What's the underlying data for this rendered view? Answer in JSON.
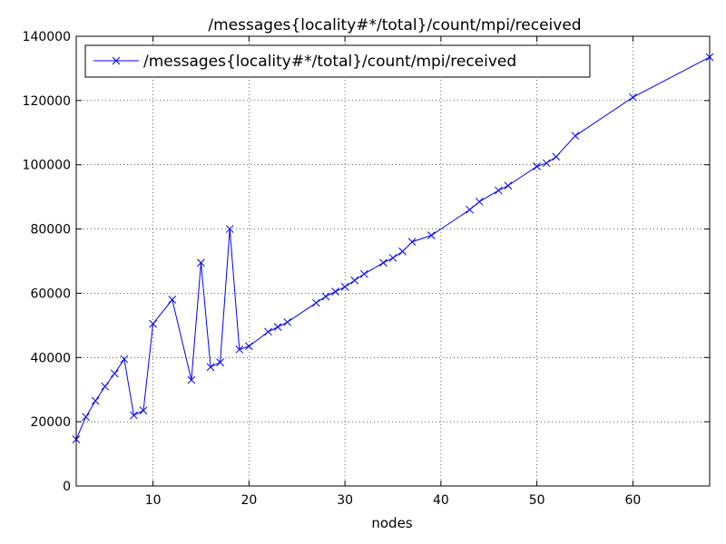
{
  "chart_data": {
    "type": "line",
    "title": "/messages{locality#*/total}/count/mpi/received",
    "xlabel": "nodes",
    "ylabel": "",
    "xlim": [
      2,
      68
    ],
    "ylim": [
      0,
      140000
    ],
    "xticks": [
      10,
      20,
      30,
      40,
      50,
      60
    ],
    "yticks": [
      0,
      20000,
      40000,
      60000,
      80000,
      100000,
      120000,
      140000
    ],
    "grid": true,
    "legend_position": "top-left",
    "series": [
      {
        "name": "/messages{locality#*/total}/count/mpi/received",
        "color": "#0000ff",
        "marker": "x",
        "x": [
          2,
          3,
          4,
          5,
          6,
          7,
          8,
          9,
          10,
          12,
          14,
          15,
          16,
          17,
          18,
          19,
          20,
          22,
          23,
          24,
          27,
          28,
          29,
          30,
          31,
          32,
          34,
          35,
          36,
          37,
          39,
          43,
          44,
          46,
          47,
          50,
          51,
          52,
          54,
          60,
          68
        ],
        "y": [
          14500,
          21500,
          26500,
          31000,
          35000,
          39500,
          22000,
          23500,
          50500,
          58000,
          33000,
          69500,
          37000,
          38500,
          80000,
          42500,
          43500,
          48000,
          49500,
          51000,
          57000,
          59000,
          60500,
          62000,
          64000,
          66000,
          69500,
          71000,
          73000,
          76000,
          78000,
          86000,
          88500,
          92000,
          93500,
          99500,
          100500,
          102500,
          109000,
          121000,
          133500
        ]
      }
    ]
  }
}
